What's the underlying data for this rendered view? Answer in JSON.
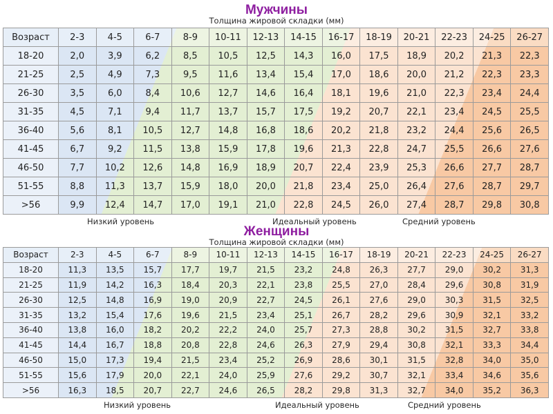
{
  "men": {
    "title": "Мужчины",
    "subtitle": "Толщина жировой складки (мм)",
    "table": {
      "header": [
        "Возраст",
        "2-3",
        "4-5",
        "6-7",
        "8-9",
        "10-11",
        "12-13",
        "14-15",
        "16-17",
        "18-19",
        "20-21",
        "22-23",
        "24-25",
        "26-27"
      ],
      "rows": [
        [
          "18-20",
          "2,0",
          "3,9",
          "6,2",
          "8,5",
          "10,5",
          "12,5",
          "14,3",
          "16,0",
          "17,5",
          "18,9",
          "20,2",
          "21,3",
          "22,3"
        ],
        [
          "21-25",
          "2,5",
          "4,9",
          "7,3",
          "9,5",
          "11,6",
          "13,4",
          "15,4",
          "17,0",
          "18,6",
          "20,0",
          "21,2",
          "22,3",
          "23,3"
        ],
        [
          "26-30",
          "3,5",
          "6,0",
          "8,4",
          "10,6",
          "12,7",
          "14,6",
          "16,4",
          "18,1",
          "19,6",
          "21,0",
          "22,3",
          "23,4",
          "24,4"
        ],
        [
          "31-35",
          "4,5",
          "7,1",
          "9,4",
          "11,7",
          "13,7",
          "15,7",
          "17,5",
          "19,2",
          "20,7",
          "22,1",
          "23,4",
          "24,5",
          "25,5"
        ],
        [
          "36-40",
          "5,6",
          "8,1",
          "10,5",
          "12,7",
          "14,8",
          "16,8",
          "18,6",
          "20,2",
          "21,8",
          "23,2",
          "24,4",
          "25,6",
          "26,5"
        ],
        [
          "41-45",
          "6,7",
          "9,2",
          "11,5",
          "13,8",
          "15,9",
          "17,8",
          "19,6",
          "21,3",
          "22,8",
          "24,7",
          "25,5",
          "26,6",
          "27,6"
        ],
        [
          "46-50",
          "7,7",
          "10,2",
          "12,6",
          "14,8",
          "16,9",
          "18,9",
          "20,7",
          "22,4",
          "23,9",
          "25,3",
          "26,6",
          "27,7",
          "28,7"
        ],
        [
          "51-55",
          "8,8",
          "11,3",
          "13,7",
          "15,9",
          "18,0",
          "20,0",
          "21,8",
          "23,4",
          "25,0",
          "26,4",
          "27,6",
          "28,7",
          "29,7"
        ],
        [
          ">56",
          "9,9",
          "12,4",
          "14,7",
          "17,0",
          "19,1",
          "21,0",
          "22,8",
          "24,5",
          "26,0",
          "27,4",
          "28,7",
          "29,8",
          "30,8"
        ]
      ]
    },
    "levels": {
      "low": "Низкий уровень",
      "ideal": "Идеальный уровень",
      "mid": "Средний уровень"
    }
  },
  "women": {
    "title": "Женщины",
    "subtitle": "Толщина жировой складки (мм)",
    "table": {
      "header": [
        "Возраст",
        "2-3",
        "4-5",
        "6-7",
        "8-9",
        "10-11",
        "12-13",
        "14-15",
        "16-17",
        "18-19",
        "20-21",
        "22-23",
        "24-25",
        "26-27"
      ],
      "rows": [
        [
          "18-20",
          "11,3",
          "13,5",
          "15,7",
          "17,7",
          "19,7",
          "21,5",
          "23,2",
          "24,8",
          "26,3",
          "27,7",
          "29,0",
          "30,2",
          "31,3"
        ],
        [
          "21-25",
          "11,9",
          "14,2",
          "16,3",
          "18,4",
          "20,3",
          "22,1",
          "23,8",
          "25,5",
          "27,0",
          "28,4",
          "29,6",
          "30,8",
          "31,9"
        ],
        [
          "26-30",
          "12,5",
          "14,8",
          "16,9",
          "19,0",
          "20,9",
          "22,7",
          "24,5",
          "26,1",
          "27,6",
          "29,0",
          "30,3",
          "31,5",
          "32,5"
        ],
        [
          "31-35",
          "13,2",
          "15,4",
          "17,6",
          "19,6",
          "21,5",
          "23,4",
          "25,1",
          "26,7",
          "28,2",
          "29,6",
          "30,9",
          "32,1",
          "33,2"
        ],
        [
          "36-40",
          "13,8",
          "16,0",
          "18,2",
          "20,2",
          "22,2",
          "24,0",
          "25,7",
          "27,3",
          "28,8",
          "30,2",
          "31,5",
          "32,7",
          "33,8"
        ],
        [
          "41-45",
          "14,4",
          "16,7",
          "18,8",
          "20,8",
          "22,8",
          "24,6",
          "26,3",
          "27,9",
          "29,4",
          "30,8",
          "32,1",
          "33,3",
          "34,4"
        ],
        [
          "46-50",
          "15,0",
          "17,3",
          "19,4",
          "21,5",
          "23,4",
          "25,2",
          "26,9",
          "28,6",
          "30,1",
          "31,5",
          "32,8",
          "34,0",
          "35,0"
        ],
        [
          "51-55",
          "15,6",
          "17,9",
          "20,0",
          "22,1",
          "24,0",
          "25,9",
          "27,6",
          "29,2",
          "30,7",
          "32,1",
          "33,4",
          "34,6",
          "35,6"
        ],
        [
          ">56",
          "16,3",
          "18,5",
          "20,7",
          "22,7",
          "24,6",
          "26,5",
          "28,2",
          "29,8",
          "31,3",
          "32,7",
          "34,0",
          "35,2",
          "36,3"
        ]
      ]
    },
    "levels": {
      "low": "Низкий уровень",
      "ideal": "Идеальный уровень",
      "mid": "Средний уровень"
    }
  },
  "colors": {
    "title": "#8e1ea0",
    "band_low": "#dbe6f4",
    "band_ideal": "#e3efd3",
    "band_mid": "#fbe3d1",
    "band_high": "#f8c9a4"
  }
}
